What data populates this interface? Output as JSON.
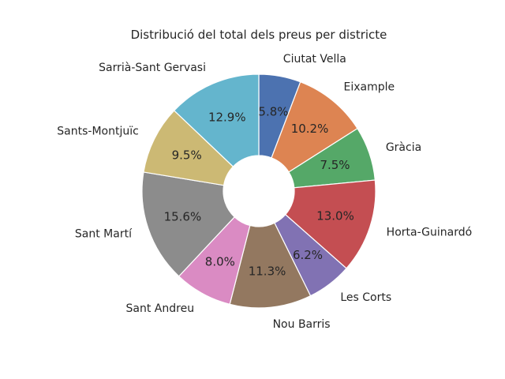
{
  "chart_data": {
    "type": "pie",
    "title": "Distribució del total dels preus per districte",
    "donut": true,
    "start": "top",
    "direction": "clockwise",
    "slices": [
      {
        "label": "Ciutat Vella",
        "value": 5.8,
        "pct_text": "5.8%",
        "color": "#4c72b0"
      },
      {
        "label": "Eixample",
        "value": 10.2,
        "pct_text": "10.2%",
        "color": "#dd8452"
      },
      {
        "label": "Gràcia",
        "value": 7.5,
        "pct_text": "7.5%",
        "color": "#55a868"
      },
      {
        "label": "Horta-Guinardó",
        "value": 13.0,
        "pct_text": "13.0%",
        "color": "#c44e52"
      },
      {
        "label": "Les Corts",
        "value": 6.2,
        "pct_text": "6.2%",
        "color": "#8172b3"
      },
      {
        "label": "Nou Barris",
        "value": 11.3,
        "pct_text": "11.3%",
        "color": "#937860"
      },
      {
        "label": "Sant Andreu",
        "value": 8.0,
        "pct_text": "8.0%",
        "color": "#da8bc3"
      },
      {
        "label": "Sant Martí",
        "value": 15.6,
        "pct_text": "15.6%",
        "color": "#8c8c8c"
      },
      {
        "label": "Sants-Montjuïc",
        "value": 9.5,
        "pct_text": "9.5%",
        "color": "#ccb974"
      },
      {
        "label": "Sarrià-Sant Gervasi",
        "value": 12.9,
        "pct_text": "12.9%",
        "color": "#64b5cd"
      }
    ]
  }
}
